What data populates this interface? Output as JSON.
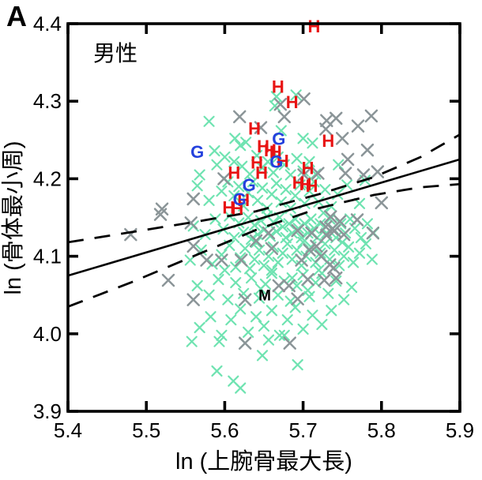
{
  "figure": {
    "panel_label": "A",
    "annotation": "男性"
  },
  "chart_data": {
    "type": "scatter",
    "title": "",
    "xlabel": "ln (上腕骨最大長)",
    "ylabel": "ln (骨体最小周)",
    "xlim": [
      5.4,
      5.9
    ],
    "ylim": [
      3.9,
      4.4
    ],
    "xticks": [
      "5.4",
      "5.5",
      "5.6",
      "5.7",
      "5.8",
      "5.9"
    ],
    "yticks": [
      "3.9",
      "4.0",
      "4.1",
      "4.2",
      "4.3",
      "4.4"
    ],
    "grid": false,
    "legend": "none",
    "annotation_text": "男性",
    "series": [
      {
        "name": "green-x",
        "marker": "x",
        "color": "#6fe3b1",
        "points": [
          [
            5.58,
            4.274
          ],
          [
            5.613,
            4.252
          ],
          [
            5.62,
            4.243
          ],
          [
            5.627,
            4.247
          ],
          [
            5.664,
            4.294
          ],
          [
            5.666,
            4.306
          ],
          [
            5.672,
            4.262
          ],
          [
            5.691,
            4.308
          ],
          [
            5.7,
            4.252
          ],
          [
            5.712,
            4.246
          ],
          [
            5.568,
            4.205
          ],
          [
            5.587,
            4.236
          ],
          [
            5.59,
            4.218
          ],
          [
            5.6,
            4.228
          ],
          [
            5.612,
            4.222
          ],
          [
            5.622,
            4.216
          ],
          [
            5.632,
            4.206
          ],
          [
            5.641,
            4.23
          ],
          [
            5.648,
            4.214
          ],
          [
            5.655,
            4.222
          ],
          [
            5.662,
            4.208
          ],
          [
            5.668,
            4.228
          ],
          [
            5.676,
            4.218
          ],
          [
            5.684,
            4.205
          ],
          [
            5.692,
            4.226
          ],
          [
            5.7,
            4.21
          ],
          [
            5.708,
            4.222
          ],
          [
            5.716,
            4.206
          ],
          [
            5.745,
            4.218
          ],
          [
            5.779,
            4.198
          ],
          [
            5.565,
            4.191
          ],
          [
            5.58,
            4.172
          ],
          [
            5.596,
            4.184
          ],
          [
            5.604,
            4.196
          ],
          [
            5.612,
            4.178
          ],
          [
            5.618,
            4.19
          ],
          [
            5.624,
            4.165
          ],
          [
            5.63,
            4.182
          ],
          [
            5.636,
            4.196
          ],
          [
            5.642,
            4.172
          ],
          [
            5.648,
            4.188
          ],
          [
            5.654,
            4.162
          ],
          [
            5.66,
            4.18
          ],
          [
            5.666,
            4.194
          ],
          [
            5.672,
            4.17
          ],
          [
            5.678,
            4.186
          ],
          [
            5.684,
            4.162
          ],
          [
            5.69,
            4.178
          ],
          [
            5.696,
            4.192
          ],
          [
            5.702,
            4.168
          ],
          [
            5.708,
            4.184
          ],
          [
            5.714,
            4.196
          ],
          [
            5.72,
            4.17
          ],
          [
            5.728,
            4.186
          ],
          [
            5.736,
            4.164
          ],
          [
            5.744,
            4.18
          ],
          [
            5.756,
            4.192
          ],
          [
            5.772,
            4.168
          ],
          [
            5.56,
            4.139
          ],
          [
            5.575,
            4.128
          ],
          [
            5.588,
            4.148
          ],
          [
            5.598,
            4.135
          ],
          [
            5.606,
            4.152
          ],
          [
            5.612,
            4.124
          ],
          [
            5.618,
            4.143
          ],
          [
            5.624,
            4.131
          ],
          [
            5.63,
            4.15
          ],
          [
            5.634,
            4.122
          ],
          [
            5.638,
            4.14
          ],
          [
            5.642,
            4.128
          ],
          [
            5.646,
            4.146
          ],
          [
            5.65,
            4.134
          ],
          [
            5.654,
            4.152
          ],
          [
            5.658,
            4.126
          ],
          [
            5.662,
            4.144
          ],
          [
            5.666,
            4.132
          ],
          [
            5.67,
            4.15
          ],
          [
            5.674,
            4.138
          ],
          [
            5.678,
            4.124
          ],
          [
            5.682,
            4.142
          ],
          [
            5.686,
            4.13
          ],
          [
            5.69,
            4.148
          ],
          [
            5.694,
            4.136
          ],
          [
            5.698,
            4.124
          ],
          [
            5.702,
            4.142
          ],
          [
            5.706,
            4.13
          ],
          [
            5.71,
            4.148
          ],
          [
            5.714,
            4.136
          ],
          [
            5.718,
            4.124
          ],
          [
            5.722,
            4.142
          ],
          [
            5.726,
            4.156
          ],
          [
            5.73,
            4.13
          ],
          [
            5.734,
            4.148
          ],
          [
            5.738,
            4.136
          ],
          [
            5.742,
            4.124
          ],
          [
            5.748,
            4.142
          ],
          [
            5.754,
            4.13
          ],
          [
            5.76,
            4.148
          ],
          [
            5.766,
            4.136
          ],
          [
            5.774,
            4.124
          ],
          [
            5.782,
            4.142
          ],
          [
            5.79,
            4.13
          ],
          [
            5.556,
            4.095
          ],
          [
            5.57,
            4.108
          ],
          [
            5.584,
            4.09
          ],
          [
            5.596,
            4.102
          ],
          [
            5.606,
            4.114
          ],
          [
            5.614,
            4.086
          ],
          [
            5.62,
            4.098
          ],
          [
            5.626,
            4.11
          ],
          [
            5.632,
            4.084
          ],
          [
            5.638,
            4.096
          ],
          [
            5.644,
            4.108
          ],
          [
            5.65,
            4.088
          ],
          [
            5.656,
            4.1
          ],
          [
            5.662,
            4.112
          ],
          [
            5.668,
            4.092
          ],
          [
            5.674,
            4.104
          ],
          [
            5.68,
            4.116
          ],
          [
            5.686,
            4.096
          ],
          [
            5.692,
            4.108
          ],
          [
            5.698,
            4.088
          ],
          [
            5.704,
            4.1
          ],
          [
            5.71,
            4.112
          ],
          [
            5.716,
            4.092
          ],
          [
            5.722,
            4.104
          ],
          [
            5.728,
            4.116
          ],
          [
            5.734,
            4.096
          ],
          [
            5.74,
            4.108
          ],
          [
            5.746,
            4.088
          ],
          [
            5.752,
            4.1
          ],
          [
            5.758,
            4.112
          ],
          [
            5.764,
            4.092
          ],
          [
            5.772,
            4.104
          ],
          [
            5.78,
            4.116
          ],
          [
            5.788,
            4.096
          ],
          [
            5.6,
            4.082
          ],
          [
            5.64,
            4.118
          ],
          [
            5.66,
            4.082
          ],
          [
            5.7,
            4.118
          ],
          [
            5.72,
            4.082
          ],
          [
            5.75,
            4.118
          ],
          [
            5.565,
            4.062
          ],
          [
            5.58,
            4.05
          ],
          [
            5.592,
            4.07
          ],
          [
            5.604,
            4.044
          ],
          [
            5.614,
            4.066
          ],
          [
            5.624,
            4.052
          ],
          [
            5.634,
            4.072
          ],
          [
            5.644,
            4.046
          ],
          [
            5.652,
            4.064
          ],
          [
            5.66,
            4.078
          ],
          [
            5.668,
            4.05
          ],
          [
            5.676,
            4.068
          ],
          [
            5.684,
            4.042
          ],
          [
            5.692,
            4.062
          ],
          [
            5.7,
            4.076
          ],
          [
            5.708,
            4.048
          ],
          [
            5.716,
            4.066
          ],
          [
            5.724,
            4.078
          ],
          [
            5.732,
            4.052
          ],
          [
            5.742,
            4.068
          ],
          [
            5.752,
            4.044
          ],
          [
            5.762,
            4.06
          ],
          [
            5.646,
            4.058
          ],
          [
            5.686,
            4.072
          ],
          [
            5.706,
            4.056
          ],
          [
            5.568,
            4.008
          ],
          [
            5.582,
            4.022
          ],
          [
            5.596,
            3.998
          ],
          [
            5.608,
            4.018
          ],
          [
            5.62,
            4.032
          ],
          [
            5.63,
            4.002
          ],
          [
            5.64,
            4.022
          ],
          [
            5.65,
            4.01
          ],
          [
            5.66,
            4.03
          ],
          [
            5.67,
            3.998
          ],
          [
            5.68,
            4.018
          ],
          [
            5.69,
            4.034
          ],
          [
            5.7,
            4.006
          ],
          [
            5.712,
            4.024
          ],
          [
            5.724,
            4.012
          ],
          [
            5.736,
            4.03
          ],
          [
            5.626,
            3.988
          ],
          [
            5.656,
            3.992
          ],
          [
            5.611,
            3.939
          ],
          [
            5.62,
            3.93
          ],
          [
            5.693,
            3.96
          ],
          [
            5.648,
            3.972
          ],
          [
            5.59,
            3.952
          ],
          [
            5.558,
            3.99
          ],
          [
            5.593,
            3.99
          ],
          [
            5.676,
            3.998
          ]
        ]
      },
      {
        "name": "gray-x",
        "marker": "x",
        "color": "#8b9598",
        "points": [
          [
            5.48,
            4.128
          ],
          [
            5.518,
            4.154
          ],
          [
            5.52,
            4.161
          ],
          [
            5.557,
            4.143
          ],
          [
            5.56,
            4.113
          ],
          [
            5.56,
            4.044
          ],
          [
            5.56,
            4.174
          ],
          [
            5.577,
            4.095
          ],
          [
            5.596,
            4.095
          ],
          [
            5.599,
            4.2
          ],
          [
            5.528,
            4.069
          ],
          [
            5.619,
            4.28
          ],
          [
            5.646,
            4.266
          ],
          [
            5.671,
            4.296
          ],
          [
            5.676,
            4.28
          ],
          [
            5.701,
            4.303
          ],
          [
            5.73,
            4.275
          ],
          [
            5.742,
            4.278
          ],
          [
            5.77,
            4.268
          ],
          [
            5.787,
            4.281
          ],
          [
            5.729,
            4.264
          ],
          [
            5.75,
            4.252
          ],
          [
            5.782,
            4.237
          ],
          [
            5.757,
            4.225
          ],
          [
            5.754,
            4.207
          ],
          [
            5.777,
            4.205
          ],
          [
            5.795,
            4.209
          ],
          [
            5.8,
            4.169
          ],
          [
            5.769,
            4.147
          ],
          [
            5.789,
            4.13
          ],
          [
            5.719,
            4.207
          ],
          [
            5.701,
            4.205
          ],
          [
            5.626,
            4.044
          ],
          [
            5.626,
            3.988
          ],
          [
            5.683,
            3.988
          ],
          [
            5.735,
            4.151
          ],
          [
            5.747,
            4.145
          ],
          [
            5.737,
            4.135
          ],
          [
            5.73,
            4.127
          ],
          [
            5.717,
            4.113
          ],
          [
            5.708,
            4.108
          ],
          [
            5.698,
            4.095
          ],
          [
            5.734,
            4.089
          ],
          [
            5.742,
            4.072
          ],
          [
            5.727,
            4.069
          ],
          [
            5.621,
            4.095
          ],
          [
            5.656,
            4.13
          ],
          [
            5.693,
            4.133
          ],
          [
            5.711,
            4.13
          ],
          [
            5.729,
            4.138
          ],
          [
            5.74,
            4.133
          ],
          [
            5.752,
            4.128
          ],
          [
            5.723,
            4.1
          ],
          [
            5.739,
            4.085
          ],
          [
            5.706,
            4.07
          ],
          [
            5.682,
            4.062
          ],
          [
            5.669,
            4.062
          ],
          [
            5.693,
            4.045
          ],
          [
            5.64,
            4.12
          ],
          [
            5.66,
            4.11
          ]
        ]
      },
      {
        "name": "H",
        "marker": "H",
        "color": "#e81313",
        "points": [
          [
            5.714,
            4.397
          ],
          [
            5.668,
            4.319
          ],
          [
            5.686,
            4.299
          ],
          [
            5.638,
            4.265
          ],
          [
            5.732,
            4.249
          ],
          [
            5.649,
            4.242
          ],
          [
            5.658,
            4.237
          ],
          [
            5.665,
            4.235
          ],
          [
            5.641,
            4.221
          ],
          [
            5.674,
            4.223
          ],
          [
            5.612,
            4.208
          ],
          [
            5.647,
            4.208
          ],
          [
            5.706,
            4.214
          ],
          [
            5.694,
            4.195
          ],
          [
            5.703,
            4.193
          ],
          [
            5.711,
            4.191
          ],
          [
            5.605,
            4.163
          ],
          [
            5.616,
            4.162
          ],
          [
            5.624,
            4.173
          ]
        ]
      },
      {
        "name": "G",
        "marker": "G",
        "color": "#2441dd",
        "points": [
          [
            5.565,
            4.235
          ],
          [
            5.669,
            4.252
          ],
          [
            5.666,
            4.222
          ],
          [
            5.631,
            4.192
          ],
          [
            5.619,
            4.174
          ]
        ]
      },
      {
        "name": "M",
        "marker": "M",
        "color": "#000000",
        "points": [
          [
            5.651,
            4.05
          ]
        ]
      }
    ],
    "regression": {
      "solid_line": [
        [
          5.4,
          4.075
        ],
        [
          5.9,
          4.225
        ]
      ],
      "upper_band_dashed": [
        [
          5.4,
          4.118
        ],
        [
          5.48,
          4.131
        ],
        [
          5.56,
          4.144
        ],
        [
          5.64,
          4.158
        ],
        [
          5.72,
          4.18
        ],
        [
          5.79,
          4.202
        ],
        [
          5.85,
          4.228
        ],
        [
          5.9,
          4.257
        ]
      ],
      "lower_band_dashed": [
        [
          5.4,
          4.035
        ],
        [
          5.48,
          4.066
        ],
        [
          5.56,
          4.1
        ],
        [
          5.64,
          4.134
        ],
        [
          5.72,
          4.162
        ],
        [
          5.79,
          4.179
        ],
        [
          5.85,
          4.189
        ],
        [
          5.9,
          4.193
        ]
      ]
    }
  }
}
